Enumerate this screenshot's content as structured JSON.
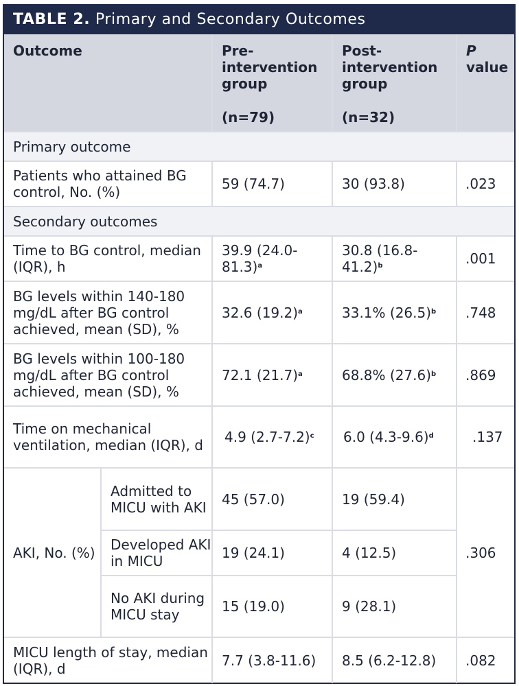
{
  "title": {
    "label": "TABLE 2.",
    "text": "Primary and Secondary Outcomes"
  },
  "header": {
    "outcome": "Outcome",
    "pre_line1": "Pre-",
    "pre_line2": "intervention",
    "pre_line3": "group",
    "pre_n": "(n=79)",
    "post_line1": "Post-",
    "post_line2": "intervention",
    "post_line3": "group",
    "post_n": "(n=32)",
    "p_label": "P",
    "p_value": "value"
  },
  "sections": {
    "primary": "Primary outcome",
    "secondary": "Secondary outcomes"
  },
  "rows": {
    "bg_attained": {
      "label": "Patients who attained BG control, No. (%)",
      "pre": "59 (74.7)",
      "post": "30 (93.8)",
      "p": ".023"
    },
    "time_bg": {
      "label": "Time to BG control, median (IQR), h",
      "pre": "39.9 (24.0-81.3)",
      "pre_sup": "a",
      "post": "30.8 (16.8-41.2)",
      "post_sup": "b",
      "p": ".001"
    },
    "bg_140": {
      "label": "BG levels within 140-180 mg/dL after BG control achieved, mean (SD), %",
      "pre": "32.6 (19.2)",
      "pre_sup": "a",
      "post": "33.1% (26.5)",
      "post_sup": "b",
      "p": ".748"
    },
    "bg_100": {
      "label": "BG levels within 100-180 mg/dL after BG control achieved, mean (SD), %",
      "pre": "72.1 (21.7)",
      "pre_sup": "a",
      "post": "68.8% (27.6)",
      "post_sup": "b",
      "p": ".869"
    },
    "vent": {
      "label": "Time on mechanical ventilation, median (IQR), d",
      "pre": "4.9 (2.7-7.2)",
      "pre_sup": "c",
      "post": "6.0 (4.3-9.6)",
      "post_sup": "d",
      "p": ".137"
    },
    "aki": {
      "label": "AKI, No. (%)",
      "p": ".306",
      "sub": [
        {
          "label": "Admitted to MICU with AKI",
          "pre": "45 (57.0)",
          "post": "19 (59.4)"
        },
        {
          "label": "Developed AKI in MICU",
          "pre": "19 (24.1)",
          "post": "4 (12.5)"
        },
        {
          "label": "No AKI during MICU stay",
          "pre": "15 (19.0)",
          "post": "9 (28.1)"
        }
      ]
    },
    "los": {
      "label": "MICU length of stay, median (IQR), d",
      "pre": "7.7 (3.8-11.6)",
      "post": "8.5 (6.2-12.8)",
      "p": ".082"
    }
  }
}
